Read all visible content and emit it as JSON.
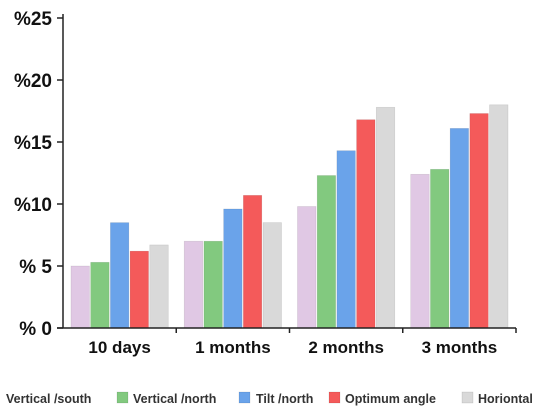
{
  "chart_data": {
    "type": "bar",
    "categories": [
      "10 days",
      "1 months",
      "2 months",
      "3 months"
    ],
    "series": [
      {
        "name": "Vertical /south",
        "color": "#e0c8e4",
        "values": [
          5.0,
          7.0,
          9.8,
          12.4
        ]
      },
      {
        "name": "Vertical /north",
        "color": "#82c97f",
        "values": [
          5.3,
          7.0,
          12.3,
          12.8
        ]
      },
      {
        "name": "Tilt /north",
        "color": "#6aa3ea",
        "values": [
          8.5,
          9.6,
          14.3,
          16.1
        ]
      },
      {
        "name": "Optimum angle",
        "color": "#f45a5a",
        "values": [
          6.2,
          10.7,
          16.8,
          17.3
        ]
      },
      {
        "name": "Horiontal",
        "color": "#d9d9d9",
        "values": [
          6.7,
          8.5,
          17.8,
          18.0
        ]
      }
    ],
    "y_ticks": [
      "% 0",
      "% 5",
      "%10",
      "%15",
      "%20",
      "%25"
    ],
    "ylim": [
      0,
      25
    ],
    "title": "",
    "xlabel": "",
    "ylabel": "",
    "grid": false,
    "legend_position": "bottom"
  }
}
